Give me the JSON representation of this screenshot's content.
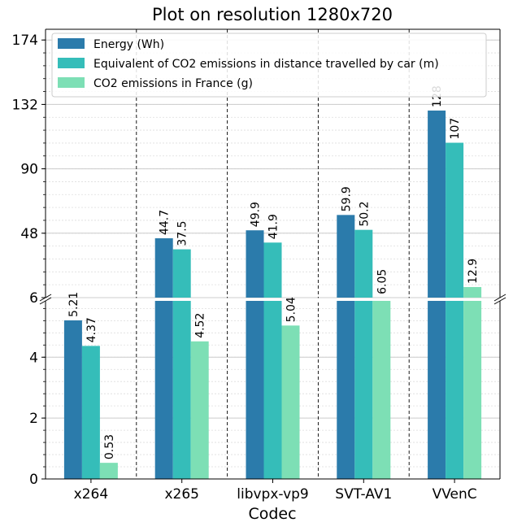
{
  "chart_data": {
    "type": "bar",
    "title": "Plot on resolution 1280x720",
    "xlabel": "Codec",
    "ylabel": "",
    "categories": [
      "x264",
      "x265",
      "libvpx-vp9",
      "SVT-AV1",
      "VVenC"
    ],
    "series": [
      {
        "name": "Energy (Wh)",
        "color": "#2b7bab",
        "values": [
          5.21,
          44.7,
          49.9,
          59.9,
          128
        ],
        "labels": [
          "5.21",
          "44.7",
          "49.9",
          "59.9",
          "128"
        ]
      },
      {
        "name": "Equivalent of CO2 emissions in distance travelled by car (m)",
        "color": "#35bdb9",
        "values": [
          4.37,
          37.5,
          41.9,
          50.2,
          107
        ],
        "labels": [
          "4.37",
          "37.5",
          "41.9",
          "50.2",
          "107"
        ]
      },
      {
        "name": "CO2 emissions in France (g)",
        "color": "#7ddfb5",
        "values": [
          0.53,
          4.52,
          5.04,
          6.05,
          12.9
        ],
        "labels": [
          "0.53",
          "4.52",
          "5.04",
          "6.05",
          "12.9"
        ]
      }
    ],
    "broken_axis": {
      "lower": {
        "ylim": [
          0,
          5.85
        ],
        "ticks": [
          "0",
          "2",
          "4"
        ]
      },
      "upper": {
        "ylim": [
          6,
          181
        ],
        "ticks": [
          "6",
          "48",
          "90",
          "132",
          "174"
        ]
      }
    },
    "grid": true,
    "legend_position": "top-left"
  }
}
